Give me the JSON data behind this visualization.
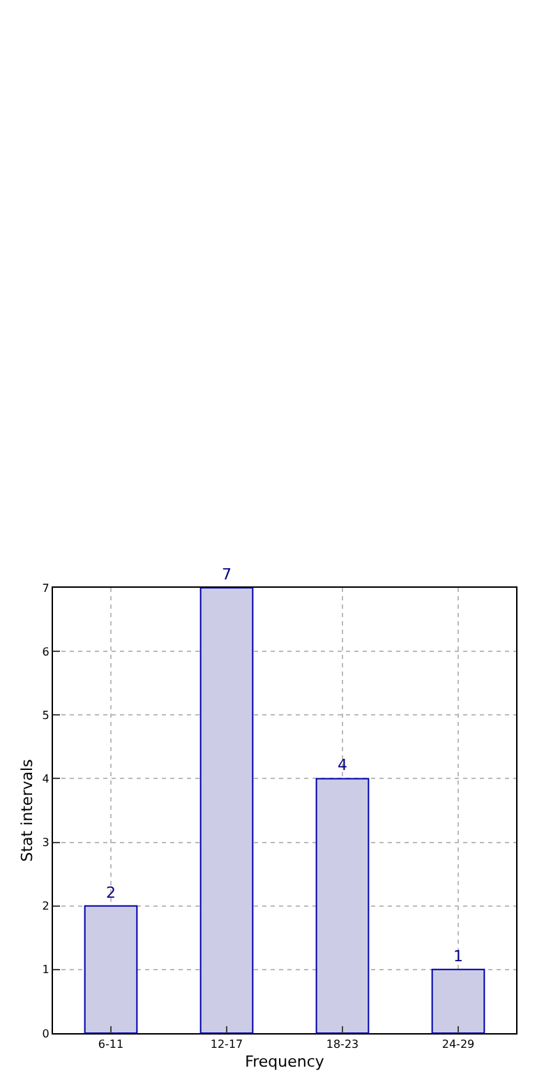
{
  "chart_data": {
    "type": "bar",
    "xlabel": "Frequency",
    "ylabel": "Stat intervals",
    "categories": [
      "6-11",
      "12-17",
      "18-23",
      "24-29"
    ],
    "values": [
      2,
      7,
      4,
      1
    ],
    "color": "#ccccE6",
    "ylim": [
      0,
      7
    ],
    "yticks": [
      0,
      1,
      2,
      3,
      4,
      5,
      6,
      7
    ],
    "grid": true,
    "data_labels": true
  }
}
